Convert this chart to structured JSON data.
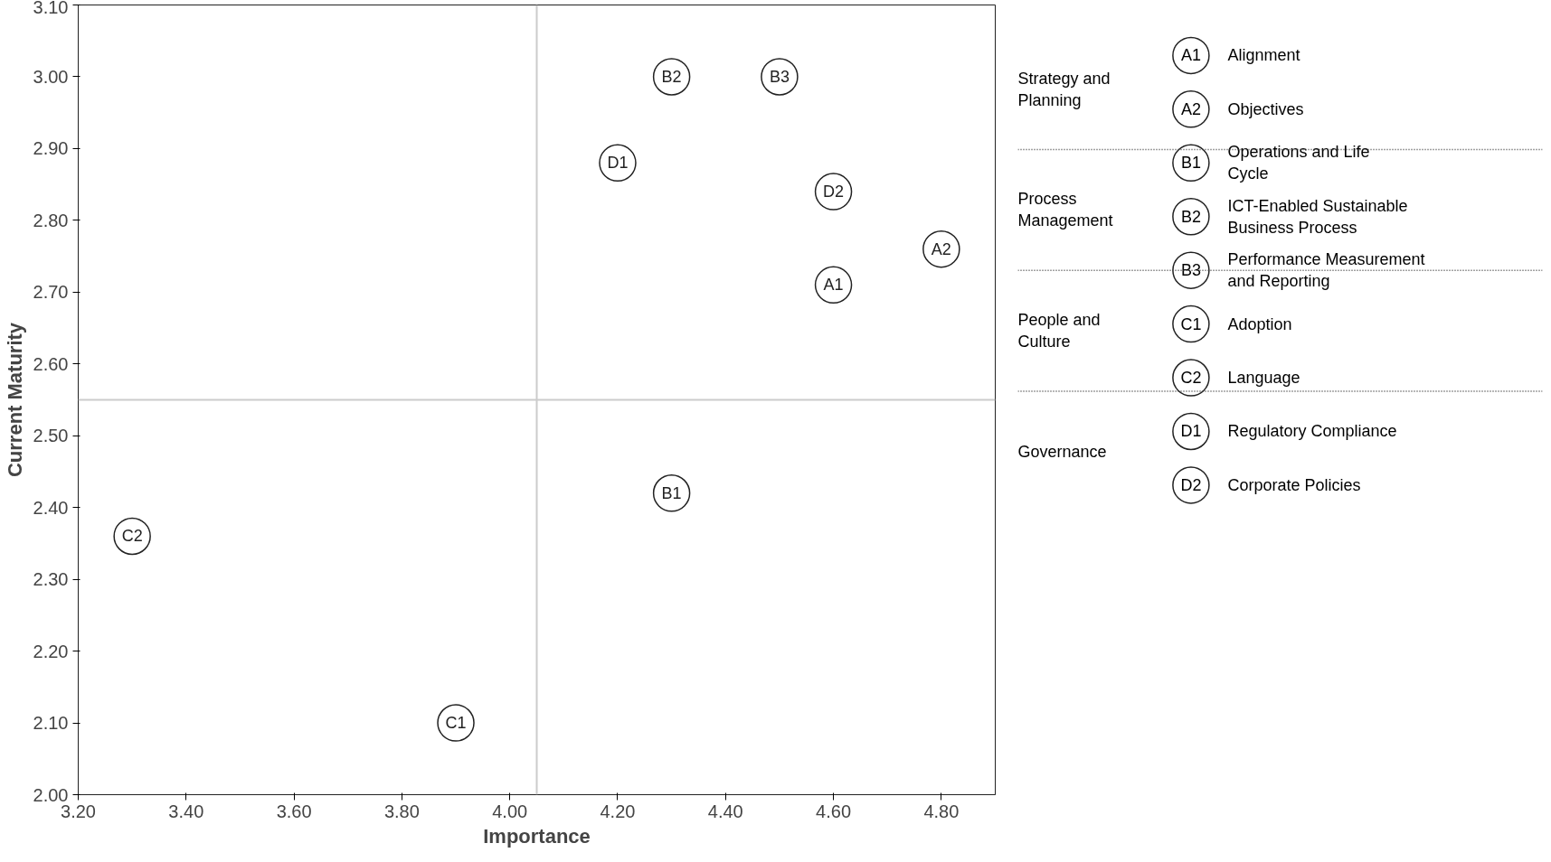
{
  "chart_data": {
    "type": "scatter",
    "xlabel": "Importance",
    "ylabel": "Current Maturity",
    "xlim": [
      3.2,
      4.9
    ],
    "ylim": [
      2.0,
      3.1
    ],
    "xticks": [
      {
        "value": 3.2,
        "label": "3.20"
      },
      {
        "value": 3.4,
        "label": "3.40"
      },
      {
        "value": 3.6,
        "label": "3.60"
      },
      {
        "value": 3.8,
        "label": "3.80"
      },
      {
        "value": 4.0,
        "label": "4.00"
      },
      {
        "value": 4.2,
        "label": "4.20"
      },
      {
        "value": 4.4,
        "label": "4.40"
      },
      {
        "value": 4.6,
        "label": "4.60"
      },
      {
        "value": 4.8,
        "label": "4.80"
      }
    ],
    "yticks": [
      {
        "value": 2.0,
        "label": "2.00"
      },
      {
        "value": 2.1,
        "label": "2.10"
      },
      {
        "value": 2.2,
        "label": "2.20"
      },
      {
        "value": 2.3,
        "label": "2.30"
      },
      {
        "value": 2.4,
        "label": "2.40"
      },
      {
        "value": 2.5,
        "label": "2.50"
      },
      {
        "value": 2.6,
        "label": "2.60"
      },
      {
        "value": 2.7,
        "label": "2.70"
      },
      {
        "value": 2.8,
        "label": "2.80"
      },
      {
        "value": 2.9,
        "label": "2.90"
      },
      {
        "value": 3.0,
        "label": "3.00"
      },
      {
        "value": 3.1,
        "label": "3.10"
      }
    ],
    "grid": false,
    "legend": "right",
    "marker": "circle",
    "series": [
      {
        "name": "Alignment",
        "color": "#222222",
        "x": [
          4.6
        ],
        "values": [
          2.71
        ],
        "value_labels": [
          "A1"
        ]
      },
      {
        "name": "Objectives",
        "color": "#222222",
        "x": [
          4.8
        ],
        "values": [
          2.76
        ],
        "value_labels": [
          "A2"
        ]
      },
      {
        "name": "Operations and Life Cycle",
        "color": "#222222",
        "x": [
          4.3
        ],
        "values": [
          2.42
        ],
        "value_labels": [
          "B1"
        ]
      },
      {
        "name": "ICT-Enabled Sustainable Business Process",
        "color": "#222222",
        "x": [
          4.3
        ],
        "values": [
          3.0
        ],
        "value_labels": [
          "B2"
        ]
      },
      {
        "name": "Performance Measurement and Reporting",
        "color": "#222222",
        "x": [
          4.5
        ],
        "values": [
          3.0
        ],
        "value_labels": [
          "B3"
        ]
      },
      {
        "name": "Adoption",
        "color": "#222222",
        "x": [
          3.9
        ],
        "values": [
          2.1
        ],
        "value_labels": [
          "C1"
        ]
      },
      {
        "name": "Language",
        "color": "#222222",
        "x": [
          3.3
        ],
        "values": [
          2.36
        ],
        "value_labels": [
          "C2"
        ]
      },
      {
        "name": "Regulatory Compliance",
        "color": "#222222",
        "x": [
          4.2
        ],
        "values": [
          2.88
        ],
        "value_labels": [
          "D1"
        ]
      },
      {
        "name": "Corporate Policies",
        "color": "#222222",
        "x": [
          4.6
        ],
        "values": [
          2.84
        ],
        "value_labels": [
          "D2"
        ]
      }
    ],
    "ref_lines": [
      {
        "axis": "x",
        "value": 4.05,
        "color": "#cccccc"
      },
      {
        "axis": "y",
        "value": 2.55,
        "color": "#cccccc"
      }
    ],
    "annotations": [
      "Strategy and Planning",
      "Process Management",
      "People and Culture",
      "Governance"
    ]
  }
}
